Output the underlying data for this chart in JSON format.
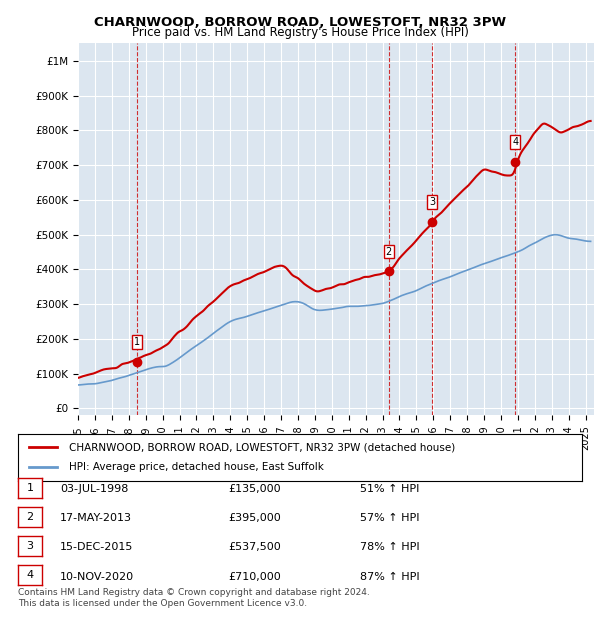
{
  "title1": "CHARNWOOD, BORROW ROAD, LOWESTOFT, NR32 3PW",
  "title2": "Price paid vs. HM Land Registry's House Price Index (HPI)",
  "ylabel_max": 1000000,
  "yticks": [
    0,
    100000,
    200000,
    300000,
    400000,
    500000,
    600000,
    700000,
    800000,
    900000,
    1000000
  ],
  "xlim_start": 1995.0,
  "xlim_end": 2025.5,
  "bg_color": "#dce6f0",
  "plot_bg": "#dce6f0",
  "red_line_color": "#cc0000",
  "blue_line_color": "#6699cc",
  "sale_points": [
    {
      "year": 1998.5,
      "price": 135000,
      "label": "1"
    },
    {
      "year": 2013.37,
      "price": 395000,
      "label": "2"
    },
    {
      "year": 2015.95,
      "price": 537500,
      "label": "3"
    },
    {
      "year": 2020.85,
      "price": 710000,
      "label": "4"
    }
  ],
  "vline_color": "#cc0000",
  "legend_entries": [
    "CHARNWOOD, BORROW ROAD, LOWESTOFT, NR32 3PW (detached house)",
    "HPI: Average price, detached house, East Suffolk"
  ],
  "table_rows": [
    [
      "1",
      "03-JUL-1998",
      "£135,000",
      "51% ↑ HPI"
    ],
    [
      "2",
      "17-MAY-2013",
      "£395,000",
      "57% ↑ HPI"
    ],
    [
      "3",
      "15-DEC-2015",
      "£537,500",
      "78% ↑ HPI"
    ],
    [
      "4",
      "10-NOV-2020",
      "£710,000",
      "87% ↑ HPI"
    ]
  ],
  "footnote": "Contains HM Land Registry data © Crown copyright and database right 2024.\nThis data is licensed under the Open Government Licence v3.0."
}
